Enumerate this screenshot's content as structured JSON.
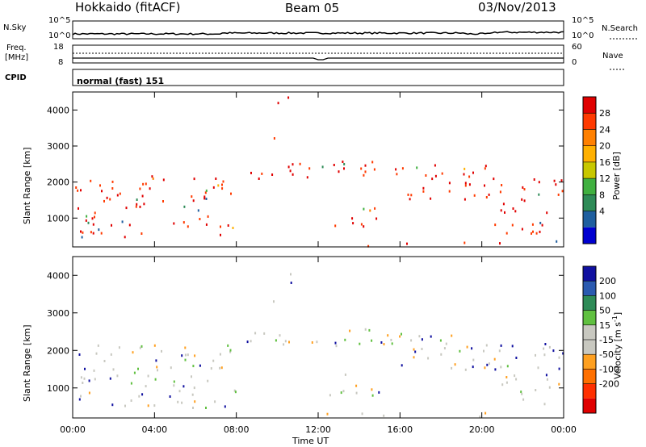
{
  "header": {
    "station": "Hokkaido (fitACF)",
    "beam": "Beam 05",
    "date": "03/Nov/2013"
  },
  "nsky": {
    "label": "N.Sky",
    "tick_top": "10^5",
    "tick_bottom": "10^0",
    "right_label": "N.Search",
    "right_tick_top": "10^5",
    "right_tick_bottom": "10^0"
  },
  "freq": {
    "label_line1": "Freq.",
    "label_line2": "[MHz]",
    "tick_top": "18",
    "tick_bottom": "8",
    "right_label": "Nave",
    "right_tick_top": "60",
    "right_tick_bottom": "0"
  },
  "cpid": {
    "label": "CPID",
    "value": "normal (fast) 151"
  },
  "x_axis": {
    "label": "Time UT",
    "ticks": [
      "00:00",
      "04:00",
      "08:00",
      "12:00",
      "16:00",
      "20:00",
      "00:00"
    ]
  },
  "chart_data": [
    {
      "type": "heatmap",
      "name": "power",
      "xlabel": "Time UT",
      "ylabel": "Slant Range [km]",
      "y_ticks": [
        "1000",
        "2000",
        "3000",
        "4000"
      ],
      "ylim": [
        200,
        4500
      ],
      "colorbar_label": "Power [dB]",
      "colorbar_ticks": [
        "28",
        "24",
        "20",
        "16",
        "12",
        "8",
        "4"
      ],
      "colorbar_colors": [
        "#e00000",
        "#ff3a00",
        "#ff8000",
        "#ffb000",
        "#c8c800",
        "#40b040",
        "#2e8b57",
        "#1f5f9f",
        "#0000d0"
      ]
    },
    {
      "type": "heatmap",
      "name": "velocity",
      "xlabel": "Time UT",
      "ylabel": "Slant Range [km]",
      "y_ticks": [
        "1000",
        "2000",
        "3000",
        "4000"
      ],
      "ylim": [
        200,
        4500
      ],
      "colorbar_label": "Velocity [m s^-1]",
      "colorbar_ticks": [
        "200",
        "100",
        "50",
        "15",
        "-15",
        "-50",
        "-100",
        "-200"
      ],
      "colorbar_colors": [
        "#1010a0",
        "#2a5ab0",
        "#2e8b57",
        "#60c040",
        "#c8c8c0",
        "#c8c8c0",
        "#ffa020",
        "#ff7000",
        "#ff3000",
        "#e00000"
      ]
    }
  ]
}
